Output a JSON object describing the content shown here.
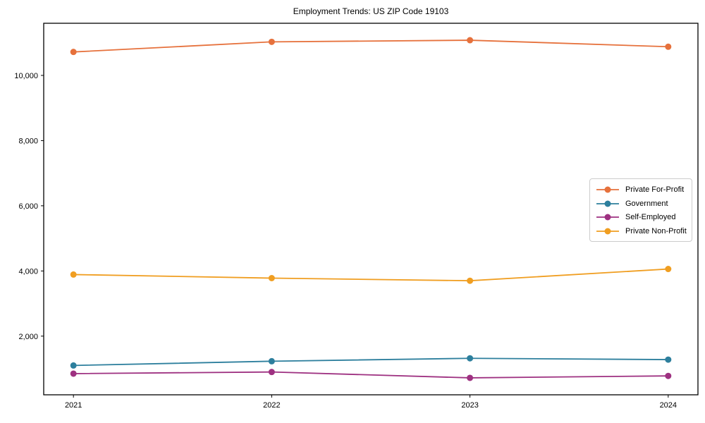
{
  "title": "Employment Trends: US ZIP Code 19103",
  "chart_data": {
    "type": "line",
    "x": [
      2021,
      2022,
      2023,
      2024
    ],
    "xtick_labels": [
      "2021",
      "2022",
      "2023",
      "2024"
    ],
    "yticks": [
      2000,
      4000,
      6000,
      8000,
      10000
    ],
    "ytick_labels": [
      "2,000",
      "4,000",
      "6,000",
      "8,000",
      "10,000"
    ],
    "xlim": [
      2020.85,
      2024.15
    ],
    "ylim": [
      200,
      11600
    ],
    "grid": false,
    "legend_position": "center-right",
    "marker": "circle",
    "axes_color": "#000000",
    "series": [
      {
        "name": "Private For-Profit",
        "color": "#e6713c",
        "values": [
          10720,
          11030,
          11080,
          10880
        ]
      },
      {
        "name": "Government",
        "color": "#2d7f9d",
        "values": [
          1100,
          1230,
          1320,
          1280
        ]
      },
      {
        "name": "Self-Employed",
        "color": "#9e3181",
        "values": [
          850,
          900,
          720,
          780
        ]
      },
      {
        "name": "Private Non-Profit",
        "color": "#f09e21",
        "values": [
          3890,
          3780,
          3700,
          4060
        ]
      }
    ]
  }
}
